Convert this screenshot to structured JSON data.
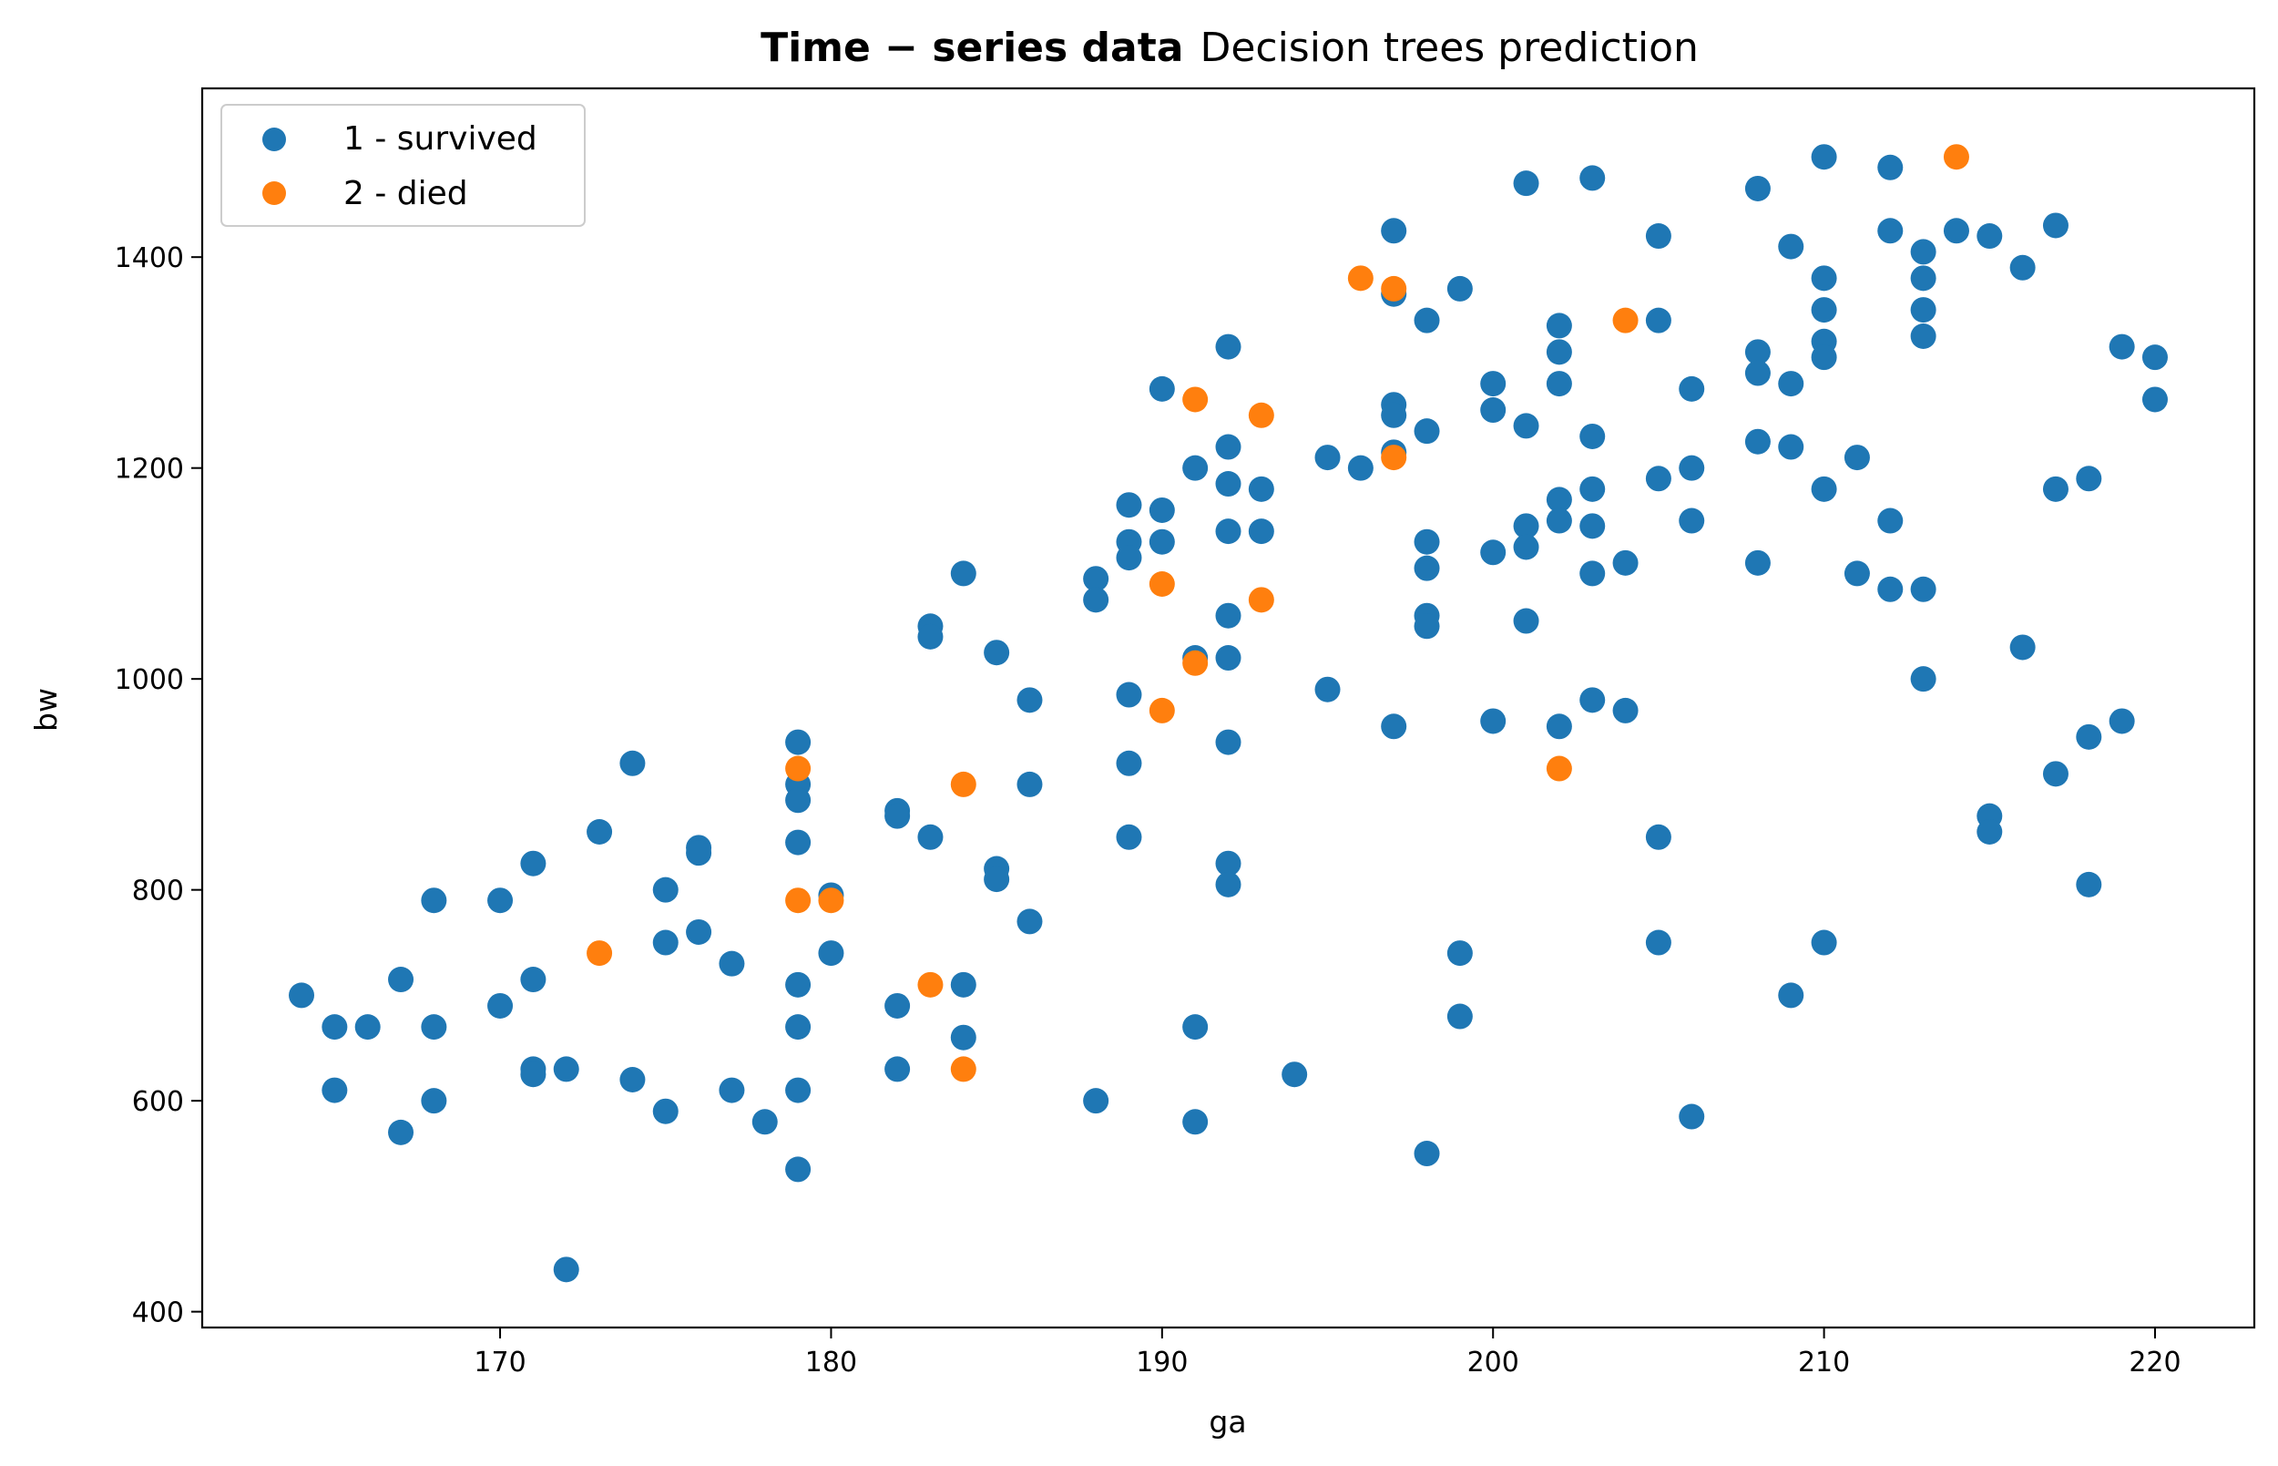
{
  "chart_data": {
    "type": "scatter",
    "title_bold": "Time − series data",
    "title_regular": "Decision trees prediction",
    "xlabel": "ga",
    "ylabel": "bw",
    "xlim": [
      161,
      223
    ],
    "ylim": [
      385,
      1560
    ],
    "xticks": [
      170,
      180,
      190,
      200,
      210,
      220
    ],
    "yticks": [
      400,
      600,
      800,
      1000,
      1200,
      1400
    ],
    "grid": false,
    "legend_position": "top-left",
    "series": [
      {
        "name": "1 - survived",
        "color": "#1f77b4",
        "points": [
          [
            164,
            700
          ],
          [
            165,
            670
          ],
          [
            165,
            610
          ],
          [
            166,
            670
          ],
          [
            167,
            715
          ],
          [
            167,
            570
          ],
          [
            168,
            790
          ],
          [
            168,
            670
          ],
          [
            168,
            600
          ],
          [
            170,
            790
          ],
          [
            170,
            690
          ],
          [
            171,
            825
          ],
          [
            171,
            715
          ],
          [
            171,
            630
          ],
          [
            171,
            625
          ],
          [
            172,
            630
          ],
          [
            172,
            440
          ],
          [
            173,
            855
          ],
          [
            174,
            920
          ],
          [
            174,
            620
          ],
          [
            175,
            800
          ],
          [
            175,
            750
          ],
          [
            175,
            590
          ],
          [
            176,
            840
          ],
          [
            176,
            835
          ],
          [
            176,
            760
          ],
          [
            177,
            730
          ],
          [
            177,
            610
          ],
          [
            178,
            580
          ],
          [
            179,
            940
          ],
          [
            179,
            900
          ],
          [
            179,
            885
          ],
          [
            179,
            845
          ],
          [
            179,
            710
          ],
          [
            179,
            670
          ],
          [
            179,
            610
          ],
          [
            179,
            535
          ],
          [
            180,
            795
          ],
          [
            180,
            740
          ],
          [
            182,
            875
          ],
          [
            182,
            870
          ],
          [
            182,
            690
          ],
          [
            182,
            630
          ],
          [
            183,
            1050
          ],
          [
            183,
            1040
          ],
          [
            183,
            850
          ],
          [
            184,
            1100
          ],
          [
            184,
            710
          ],
          [
            184,
            660
          ],
          [
            185,
            1025
          ],
          [
            185,
            820
          ],
          [
            185,
            810
          ],
          [
            186,
            980
          ],
          [
            186,
            900
          ],
          [
            186,
            770
          ],
          [
            188,
            1095
          ],
          [
            188,
            1075
          ],
          [
            188,
            600
          ],
          [
            189,
            1165
          ],
          [
            189,
            1130
          ],
          [
            189,
            1115
          ],
          [
            189,
            985
          ],
          [
            189,
            920
          ],
          [
            189,
            850
          ],
          [
            190,
            1275
          ],
          [
            190,
            1160
          ],
          [
            190,
            1130
          ],
          [
            191,
            1200
          ],
          [
            191,
            1020
          ],
          [
            191,
            670
          ],
          [
            191,
            580
          ],
          [
            192,
            1315
          ],
          [
            192,
            1220
          ],
          [
            192,
            1185
          ],
          [
            192,
            1140
          ],
          [
            192,
            1060
          ],
          [
            192,
            1020
          ],
          [
            192,
            940
          ],
          [
            192,
            825
          ],
          [
            192,
            805
          ],
          [
            193,
            1180
          ],
          [
            193,
            1140
          ],
          [
            194,
            625
          ],
          [
            195,
            1210
          ],
          [
            195,
            990
          ],
          [
            196,
            1200
          ],
          [
            197,
            1425
          ],
          [
            197,
            1365
          ],
          [
            197,
            1260
          ],
          [
            197,
            1250
          ],
          [
            197,
            1215
          ],
          [
            197,
            955
          ],
          [
            198,
            1340
          ],
          [
            198,
            1235
          ],
          [
            198,
            1130
          ],
          [
            198,
            1105
          ],
          [
            198,
            1060
          ],
          [
            198,
            1050
          ],
          [
            198,
            550
          ],
          [
            199,
            1370
          ],
          [
            199,
            740
          ],
          [
            199,
            680
          ],
          [
            200,
            1280
          ],
          [
            200,
            1255
          ],
          [
            200,
            1120
          ],
          [
            200,
            960
          ],
          [
            201,
            1470
          ],
          [
            201,
            1240
          ],
          [
            201,
            1145
          ],
          [
            201,
            1125
          ],
          [
            201,
            1055
          ],
          [
            202,
            1335
          ],
          [
            202,
            1310
          ],
          [
            202,
            1280
          ],
          [
            202,
            1170
          ],
          [
            202,
            1150
          ],
          [
            202,
            955
          ],
          [
            203,
            1475
          ],
          [
            203,
            1230
          ],
          [
            203,
            1180
          ],
          [
            203,
            1145
          ],
          [
            203,
            1100
          ],
          [
            203,
            980
          ],
          [
            204,
            1110
          ],
          [
            204,
            970
          ],
          [
            205,
            1420
          ],
          [
            205,
            1340
          ],
          [
            205,
            1190
          ],
          [
            205,
            850
          ],
          [
            205,
            750
          ],
          [
            206,
            1275
          ],
          [
            206,
            1200
          ],
          [
            206,
            1150
          ],
          [
            206,
            585
          ],
          [
            208,
            1465
          ],
          [
            208,
            1310
          ],
          [
            208,
            1290
          ],
          [
            208,
            1225
          ],
          [
            208,
            1110
          ],
          [
            209,
            1410
          ],
          [
            209,
            1280
          ],
          [
            209,
            1220
          ],
          [
            209,
            700
          ],
          [
            210,
            1495
          ],
          [
            210,
            1380
          ],
          [
            210,
            1350
          ],
          [
            210,
            1320
          ],
          [
            210,
            1305
          ],
          [
            210,
            1180
          ],
          [
            210,
            750
          ],
          [
            211,
            1210
          ],
          [
            211,
            1100
          ],
          [
            212,
            1485
          ],
          [
            212,
            1425
          ],
          [
            212,
            1150
          ],
          [
            212,
            1085
          ],
          [
            213,
            1405
          ],
          [
            213,
            1380
          ],
          [
            213,
            1350
          ],
          [
            213,
            1325
          ],
          [
            213,
            1085
          ],
          [
            213,
            1000
          ],
          [
            214,
            1425
          ],
          [
            215,
            1420
          ],
          [
            215,
            870
          ],
          [
            215,
            855
          ],
          [
            216,
            1390
          ],
          [
            216,
            1030
          ],
          [
            217,
            1430
          ],
          [
            217,
            1180
          ],
          [
            217,
            910
          ],
          [
            218,
            1190
          ],
          [
            218,
            945
          ],
          [
            218,
            805
          ],
          [
            219,
            1315
          ],
          [
            219,
            960
          ],
          [
            220,
            1305
          ],
          [
            220,
            1265
          ]
        ]
      },
      {
        "name": "2 - died",
        "color": "#ff7f0e",
        "points": [
          [
            173,
            740
          ],
          [
            179,
            915
          ],
          [
            179,
            790
          ],
          [
            180,
            790
          ],
          [
            183,
            710
          ],
          [
            184,
            900
          ],
          [
            184,
            630
          ],
          [
            190,
            1090
          ],
          [
            190,
            970
          ],
          [
            191,
            1265
          ],
          [
            191,
            1015
          ],
          [
            193,
            1250
          ],
          [
            193,
            1075
          ],
          [
            196,
            1380
          ],
          [
            197,
            1370
          ],
          [
            197,
            1210
          ],
          [
            202,
            915
          ],
          [
            204,
            1340
          ],
          [
            214,
            1495
          ]
        ]
      }
    ]
  }
}
